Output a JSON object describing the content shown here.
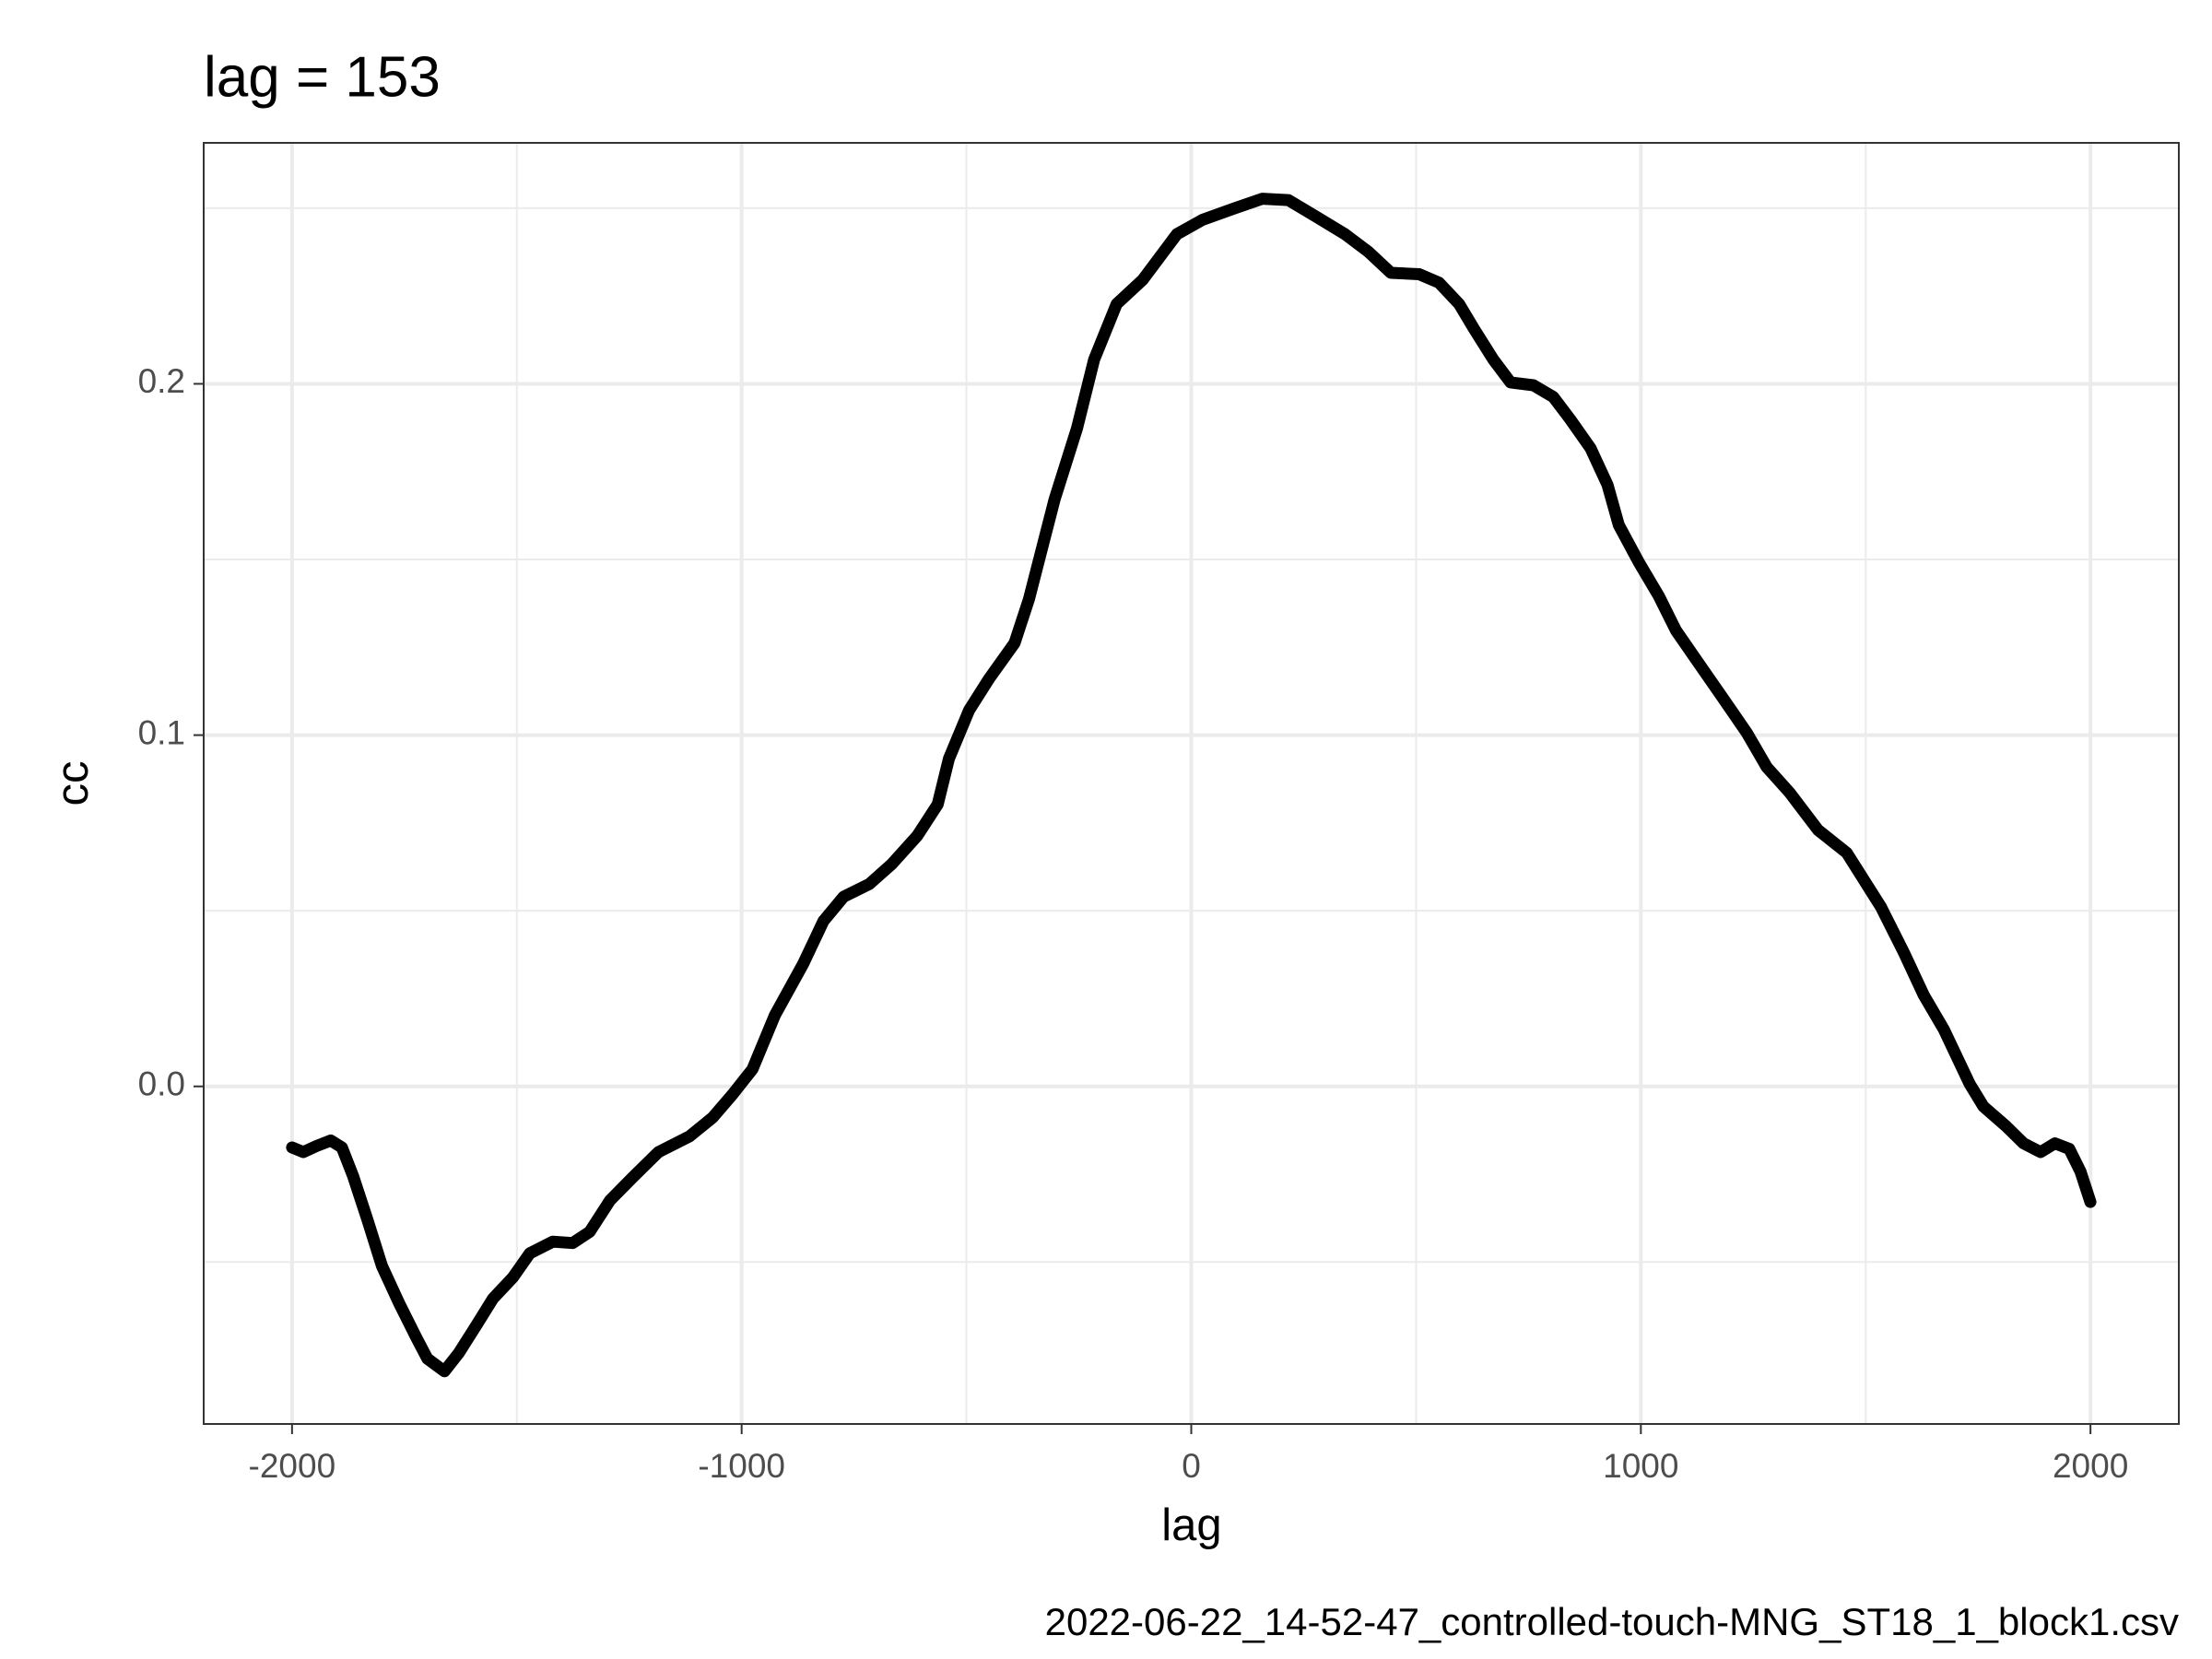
{
  "chart_data": {
    "type": "line",
    "title": "lag = 153",
    "x_label": "lag",
    "y_label": "cc",
    "caption": "2022-06-22_14-52-47_controlled-touch-MNG_ST18_1_block1.csv",
    "xlim": [
      -2196.5,
      2196.5
    ],
    "ylim": [
      -0.0961,
      0.2686
    ],
    "xticks": [
      -2000,
      -1000,
      0,
      1000,
      2000
    ],
    "yticks": [
      {
        "value": 0,
        "label": "0.0"
      },
      0.1,
      0.2
    ],
    "x_minor_breaks": [
      -1500,
      -500,
      500,
      1500
    ],
    "y_minor_breaks": [
      -0.05,
      0.05,
      0.15,
      0.25
    ],
    "grid": true,
    "series": [
      {
        "color": "#000000",
        "x": [
          -2000,
          -1975,
          -1946,
          -1914,
          -1889,
          -1864,
          -1832,
          -1800,
          -1762,
          -1724,
          -1699,
          -1661,
          -1629,
          -1591,
          -1553,
          -1509,
          -1471,
          -1420,
          -1376,
          -1338,
          -1293,
          -1243,
          -1185,
          -1116,
          -1065,
          -1021,
          -976,
          -926,
          -863,
          -818,
          -773,
          -716,
          -666,
          -609,
          -564,
          -539,
          -494,
          -450,
          -393,
          -361,
          -304,
          -254,
          -216,
          -166,
          -108,
          -32,
          25,
          95,
          158,
          216,
          279,
          342,
          393,
          444,
          507,
          551,
          596,
          628,
          672,
          710,
          761,
          805,
          843,
          888,
          926,
          951,
          995,
          1040,
          1078,
          1122,
          1179,
          1236,
          1280,
          1331,
          1394,
          1458,
          1534,
          1585,
          1629,
          1674,
          1731,
          1762,
          1813,
          1851,
          1889,
          1921,
          1953,
          1978,
          2000
        ],
        "values": [
          -0.0174,
          -0.0187,
          -0.017,
          -0.0154,
          -0.0174,
          -0.0256,
          -0.0381,
          -0.0511,
          -0.0617,
          -0.0714,
          -0.0775,
          -0.0811,
          -0.0759,
          -0.0682,
          -0.0604,
          -0.0544,
          -0.0475,
          -0.0442,
          -0.0446,
          -0.0414,
          -0.0325,
          -0.026,
          -0.0187,
          -0.0142,
          -0.0089,
          -0.0024,
          0.0049,
          0.0203,
          0.0349,
          0.0471,
          0.054,
          0.0576,
          0.0633,
          0.0714,
          0.0803,
          0.0933,
          0.1071,
          0.116,
          0.1262,
          0.1387,
          0.1671,
          0.1874,
          0.2069,
          0.2227,
          0.2296,
          0.2426,
          0.2467,
          0.2499,
          0.2527,
          0.2523,
          0.2475,
          0.2426,
          0.2377,
          0.2316,
          0.2312,
          0.2288,
          0.2227,
          0.2158,
          0.2069,
          0.2004,
          0.1996,
          0.1963,
          0.1899,
          0.1817,
          0.1712,
          0.1598,
          0.1493,
          0.1396,
          0.1298,
          0.1217,
          0.1112,
          0.1006,
          0.0909,
          0.0836,
          0.073,
          0.0665,
          0.0511,
          0.0381,
          0.026,
          0.0162,
          0.0008,
          -0.0057,
          -0.0114,
          -0.0162,
          -0.0187,
          -0.0162,
          -0.0178,
          -0.0243,
          -0.0329
        ]
      }
    ]
  }
}
